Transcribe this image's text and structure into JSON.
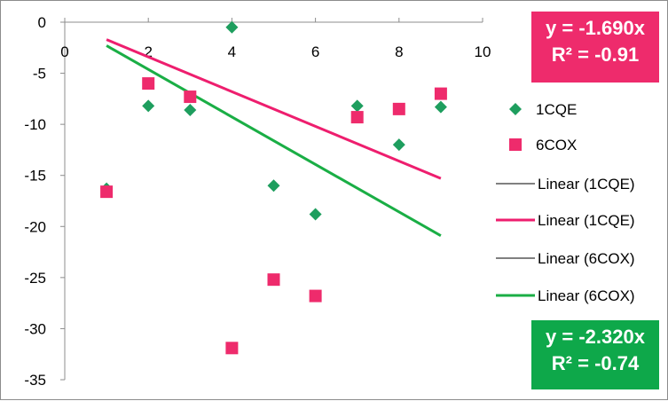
{
  "chart_data": {
    "type": "scatter",
    "x_ticks": [
      "0",
      "2",
      "4",
      "6",
      "8",
      "10"
    ],
    "y_ticks": [
      "0",
      "-5",
      "-10",
      "-15",
      "-20",
      "-25",
      "-30",
      "-35"
    ],
    "xlim": [
      0,
      10
    ],
    "ylim": [
      -35,
      0
    ],
    "grid": false,
    "legend_position": "right",
    "series": [
      {
        "name": "1CQE",
        "marker": "diamond",
        "color": "#1e9e5e",
        "x": [
          1,
          2,
          3,
          4,
          5,
          6,
          7,
          8,
          9
        ],
        "y": [
          -16.3,
          -8.2,
          -8.6,
          -0.5,
          -16.0,
          -18.8,
          -8.2,
          -12.0,
          -8.3
        ]
      },
      {
        "name": "6COX",
        "marker": "square",
        "color": "#ee2b6c",
        "x": [
          1,
          2,
          3,
          4,
          5,
          6,
          7,
          8,
          9
        ],
        "y": [
          -16.6,
          -6.0,
          -7.3,
          -31.9,
          -25.2,
          -26.8,
          -9.3,
          -8.5,
          -7.0
        ]
      }
    ],
    "trendlines": [
      {
        "name": "Linear (1CQE)",
        "color": "#ee1e6e",
        "x": [
          1,
          9
        ],
        "y": [
          -1.7,
          -15.3
        ]
      },
      {
        "name": "Linear (6COX)",
        "color": "#1aae45",
        "x": [
          1,
          9
        ],
        "y": [
          -2.3,
          -20.9
        ]
      }
    ],
    "legend": [
      {
        "label": "1CQE",
        "type": "diamond",
        "color": "#1e9e5e"
      },
      {
        "label": "6COX",
        "type": "square",
        "color": "#ee2b6c"
      },
      {
        "label": "Linear (1CQE)",
        "type": "thin-line",
        "color": "#000000"
      },
      {
        "label": "Linear (1CQE)",
        "type": "thick-line",
        "color": "#ee1e6e"
      },
      {
        "label": "Linear (6COX)",
        "type": "thin-line",
        "color": "#000000"
      },
      {
        "label": "Linear (6COX)",
        "type": "thick-line",
        "color": "#1aae45"
      }
    ],
    "annotations": [
      {
        "equation": "y = -1.690x",
        "r2": "R² = -0.91",
        "color": "#ee2b6c"
      },
      {
        "equation": "y = -2.320x",
        "r2": "R² = -0.74",
        "color": "#0ea84a"
      }
    ]
  }
}
